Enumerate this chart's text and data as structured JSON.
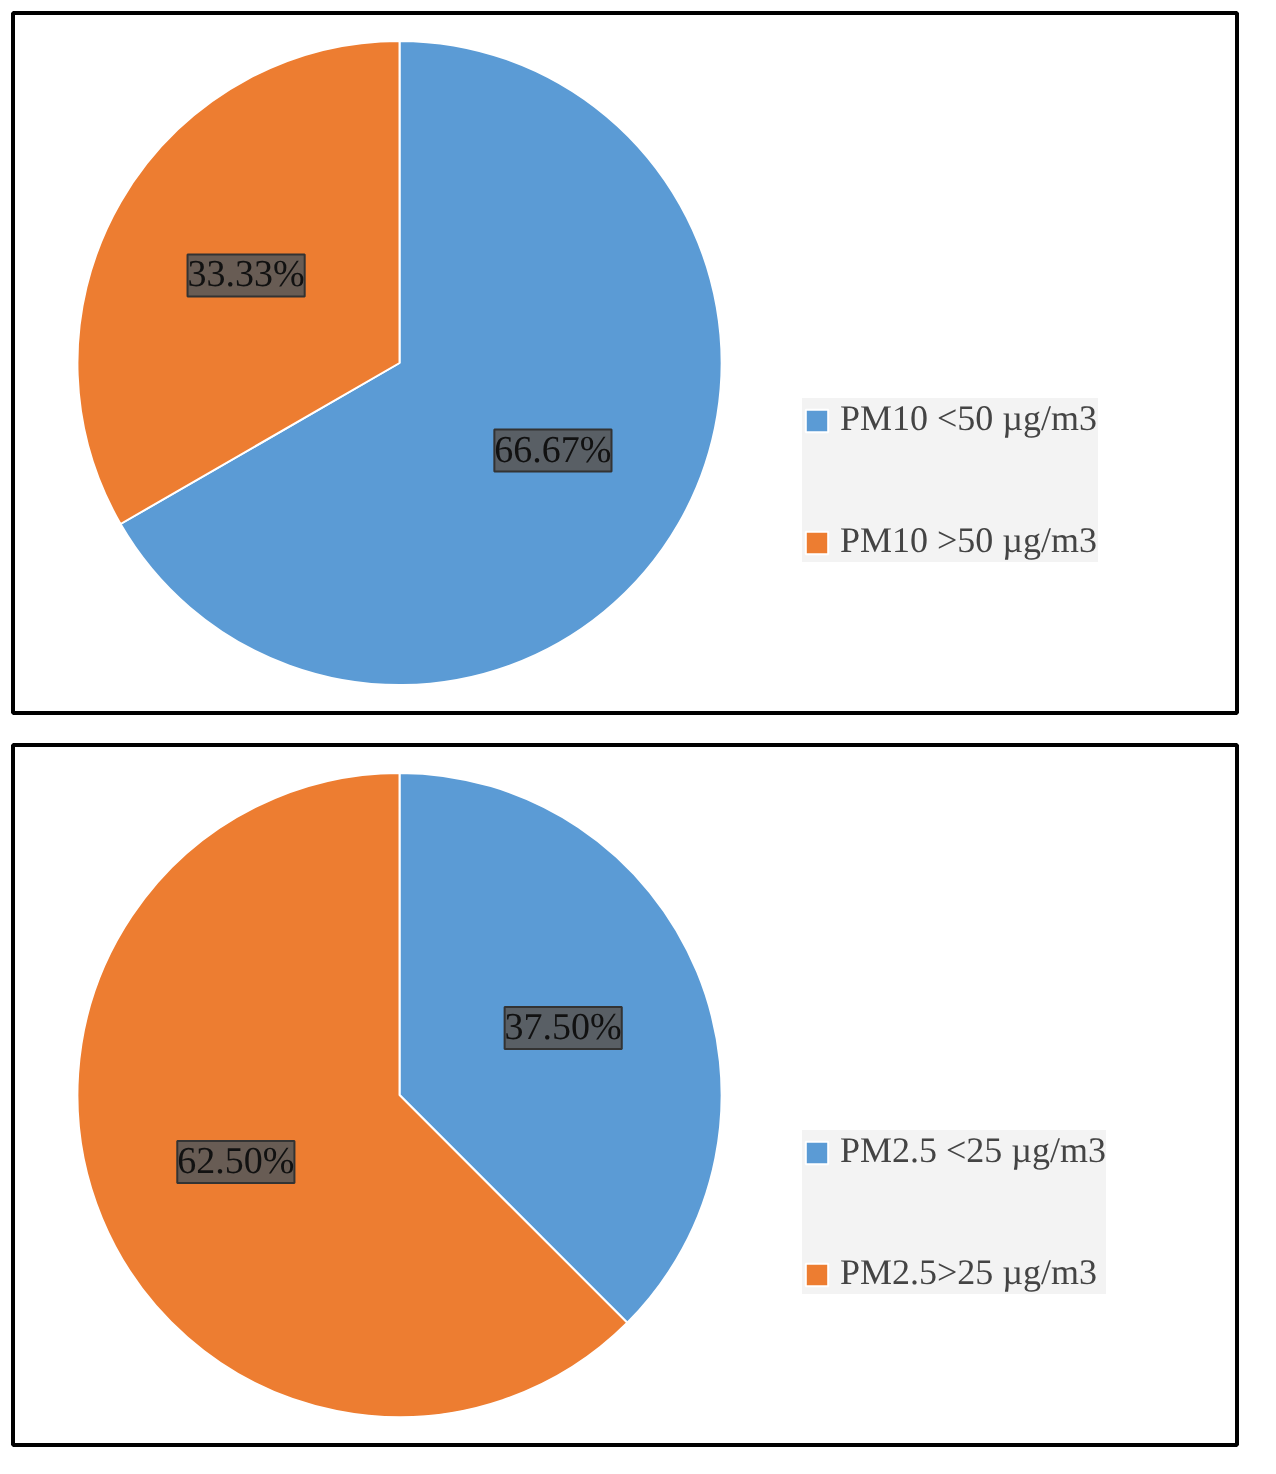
{
  "chart_data": [
    {
      "type": "pie",
      "categories": [
        "PM10 <50 µg/m3",
        "PM10 >50 µg/m3"
      ],
      "values": [
        66.67,
        33.33
      ],
      "colors": [
        "#5b9bd5",
        "#ed7d31"
      ],
      "value_labels": [
        "66.67%",
        "33.33%"
      ],
      "legend": "right"
    },
    {
      "type": "pie",
      "categories": [
        "PM2.5 <25 µg/m3",
        "PM2.5>25 µg/m3"
      ],
      "values": [
        37.5,
        62.5
      ],
      "colors": [
        "#5b9bd5",
        "#ed7d31"
      ],
      "value_labels": [
        "37.50%",
        "62.50%"
      ],
      "legend": "right"
    }
  ]
}
